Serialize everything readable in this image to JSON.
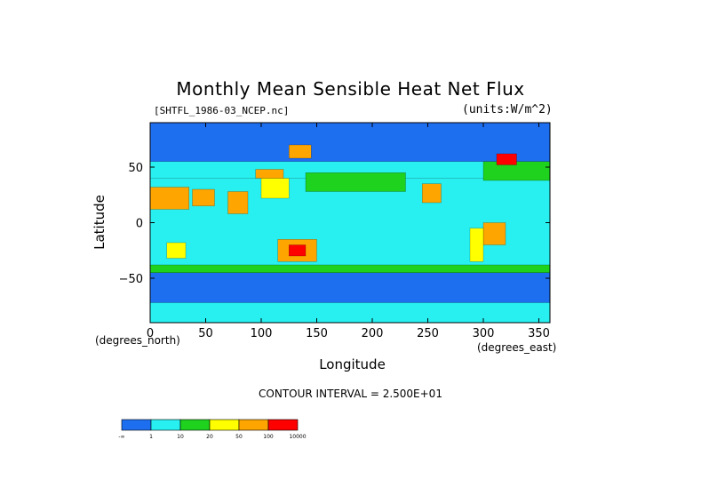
{
  "chart_data": {
    "type": "heatmap",
    "title": "Monthly Mean Sensible Heat Net Flux",
    "source_label": "[SHTFL_1986-03_NCEP.nc]",
    "units_label": "(units:W/m^2)",
    "xlabel": "Longitude",
    "ylabel": "Latitude",
    "x_units_label": "(degrees_east)",
    "y_units_label": "(degrees_north)",
    "contour_interval_label": "CONTOUR INTERVAL = 2.500E+01",
    "xlim": [
      0,
      360
    ],
    "ylim": [
      -90,
      90
    ],
    "x_ticks": [
      "0",
      "50",
      "100",
      "150",
      "200",
      "250",
      "300",
      "350"
    ],
    "x_tick_values": [
      0,
      50,
      100,
      150,
      200,
      250,
      300,
      350
    ],
    "y_ticks": [
      "50",
      "0",
      "−50"
    ],
    "y_tick_values": [
      50,
      0,
      -50
    ],
    "colorbar": {
      "labels": [
        "-∞",
        "1",
        "10",
        "20",
        "50",
        "100",
        "10000"
      ],
      "colors": [
        "#1e6ef0",
        "#28f0f0",
        "#1ed21e",
        "#ffff00",
        "#ffa500",
        "#ff0000"
      ]
    },
    "regions": [
      {
        "name": "ocean-background",
        "level": 1,
        "x": [
          0,
          360
        ],
        "y": [
          -40,
          40
        ]
      },
      {
        "name": "north-high-lat",
        "level": 0,
        "x": [
          0,
          360
        ],
        "y": [
          55,
          90
        ]
      },
      {
        "name": "south-high-lat",
        "level": 0,
        "x": [
          0,
          360
        ],
        "y": [
          -90,
          -45
        ]
      },
      {
        "name": "north-atlantic-band",
        "level": 2,
        "x": [
          300,
          360
        ],
        "y": [
          38,
          55
        ]
      },
      {
        "name": "north-pacific-band",
        "level": 2,
        "x": [
          140,
          230
        ],
        "y": [
          28,
          45
        ]
      },
      {
        "name": "sahara",
        "level": 4,
        "x": [
          0,
          35
        ],
        "y": [
          12,
          32
        ]
      },
      {
        "name": "arabia",
        "level": 4,
        "x": [
          38,
          58
        ],
        "y": [
          15,
          30
        ]
      },
      {
        "name": "india",
        "level": 4,
        "x": [
          70,
          88
        ],
        "y": [
          8,
          28
        ]
      },
      {
        "name": "australia",
        "level": 4,
        "x": [
          115,
          150
        ],
        "y": [
          -35,
          -15
        ]
      },
      {
        "name": "australia-core",
        "level": 5,
        "x": [
          125,
          140
        ],
        "y": [
          -30,
          -20
        ]
      },
      {
        "name": "mexico-sw-us",
        "level": 4,
        "x": [
          245,
          262
        ],
        "y": [
          18,
          35
        ]
      },
      {
        "name": "south-america-east",
        "level": 4,
        "x": [
          300,
          320
        ],
        "y": [
          -20,
          0
        ]
      },
      {
        "name": "south-america-west",
        "level": 3,
        "x": [
          288,
          300
        ],
        "y": [
          -35,
          -5
        ]
      },
      {
        "name": "southern-africa",
        "level": 3,
        "x": [
          15,
          32
        ],
        "y": [
          -32,
          -18
        ]
      },
      {
        "name": "east-asia",
        "level": 3,
        "x": [
          100,
          125
        ],
        "y": [
          22,
          40
        ]
      },
      {
        "name": "mongolia",
        "level": 4,
        "x": [
          95,
          120
        ],
        "y": [
          40,
          48
        ]
      },
      {
        "name": "europe-high",
        "level": 5,
        "x": [
          312,
          330
        ],
        "y": [
          52,
          62
        ]
      },
      {
        "name": "siberia-east",
        "level": 4,
        "x": [
          125,
          145
        ],
        "y": [
          58,
          70
        ]
      },
      {
        "name": "southern-ocean-band",
        "level": 2,
        "x": [
          0,
          360
        ],
        "y": [
          -45,
          -38
        ]
      },
      {
        "name": "antarctica-edge",
        "level": 1,
        "x": [
          0,
          360
        ],
        "y": [
          -90,
          -72
        ]
      }
    ]
  }
}
